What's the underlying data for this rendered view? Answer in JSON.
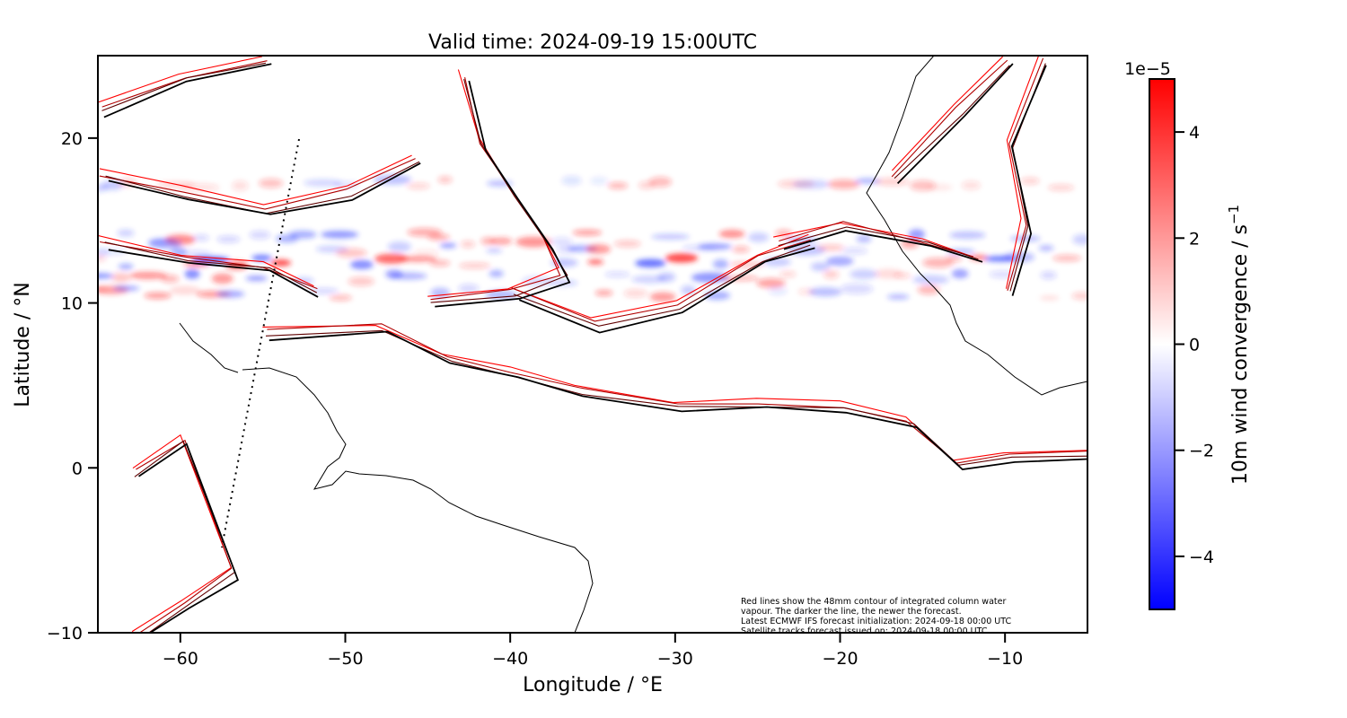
{
  "chart_data": {
    "type": "heatmap",
    "title": "Valid time: 2024-09-19 15:00UTC",
    "xlabel": "Longitude / °E",
    "ylabel": "Latitude / °N",
    "xlim": [
      -65,
      -5
    ],
    "ylim": [
      -10,
      25
    ],
    "xticks": [
      -60,
      -50,
      -40,
      -30,
      -20,
      -10
    ],
    "yticks": [
      -10,
      0,
      10,
      20
    ],
    "xtick_labels": [
      "−60",
      "−50",
      "−40",
      "−30",
      "−20",
      "−10"
    ],
    "ytick_labels": [
      "−10",
      "0",
      "10",
      "20"
    ],
    "colorbar": {
      "label": "10m wind convergence / s",
      "label_exponent": "−1",
      "offset_text": "1e−5",
      "range": [
        -5,
        5
      ],
      "ticks": [
        -4,
        -2,
        0,
        2,
        4
      ],
      "tick_labels": [
        "−4",
        "−2",
        "0",
        "2",
        "4"
      ],
      "colormap": "bwr",
      "colors": {
        "min": "#0000ff",
        "mid": "#ffffff",
        "max": "#ff0000"
      }
    },
    "contour_colors": [
      "#ff0000",
      "#b00000",
      "#600000",
      "#000000"
    ],
    "annotation": [
      "Red lines show the 48mm contour of integrated column water",
      "vapour. The darker the line, the newer the forecast.",
      "Latest ECMWF IFS forecast initialization: 2024-09-18 00:00 UTC",
      "Satellite tracks forecast issued on: 2024-09-18 00:00 UTC"
    ]
  }
}
